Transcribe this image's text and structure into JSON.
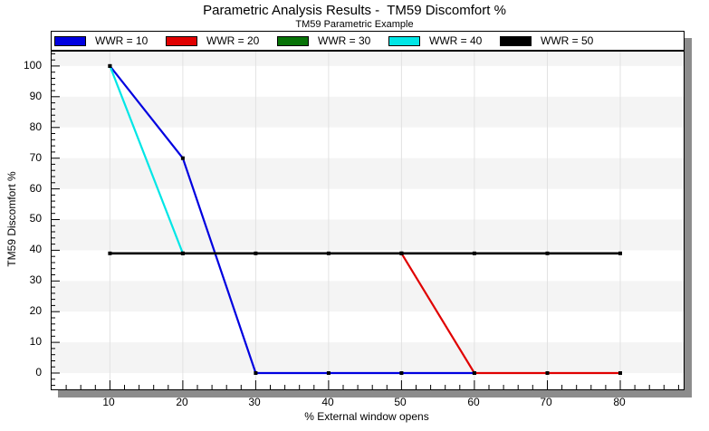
{
  "chart_data": {
    "type": "line",
    "title": "Parametric Analysis Results -  TM59 Discomfort %",
    "subtitle": "TM59 Parametric Example",
    "xlabel": "% External window opens",
    "ylabel": "TM59 Discomfort %",
    "xlim": [
      2,
      88.7
    ],
    "ylim": [
      -5.3,
      104.7
    ],
    "x_major_ticks": [
      10,
      20,
      30,
      40,
      50,
      60,
      70,
      80
    ],
    "y_major_ticks": [
      0,
      10,
      20,
      30,
      40,
      50,
      60,
      70,
      80,
      90,
      100
    ],
    "minor_tick_step": 2,
    "legend_position": "top",
    "marker": "black-square",
    "grid": {
      "vertical_gridlines": true,
      "horizontal_bands": true,
      "band_color": "#F4F4F4",
      "gridline_color": "#E2E2E2"
    },
    "series": [
      {
        "name": "WWR = 10",
        "color": "#0000E0",
        "points": [
          [
            10,
            100
          ],
          [
            20,
            70
          ],
          [
            30,
            0
          ],
          [
            40,
            0
          ],
          [
            50,
            0
          ],
          [
            60,
            0
          ]
        ]
      },
      {
        "name": "WWR = 20",
        "color": "#E00000",
        "points": [
          [
            50,
            39
          ],
          [
            60,
            0
          ],
          [
            70,
            0
          ],
          [
            80,
            0
          ]
        ],
        "note": "visible from x=50 onward; to the left it coincides with / is hidden behind the WWR = 50 line"
      },
      {
        "name": "WWR = 30",
        "color": "#077207",
        "points": [],
        "note": "line not visible in plot area (hidden behind the WWR = 50 line)"
      },
      {
        "name": "WWR = 40",
        "color": "#00E6E6",
        "points": [
          [
            10,
            100
          ],
          [
            20,
            39
          ]
        ],
        "note": "visible down to x=20 where it meets the WWR = 50 line"
      },
      {
        "name": "WWR = 50",
        "color": "#000000",
        "points": [
          [
            10,
            39
          ],
          [
            20,
            39
          ],
          [
            30,
            39
          ],
          [
            40,
            39
          ],
          [
            50,
            39
          ],
          [
            60,
            39
          ],
          [
            70,
            39
          ],
          [
            80,
            39
          ]
        ]
      }
    ]
  },
  "frame": {
    "border_color": "#000000",
    "shadow_color": "#8C8C8C",
    "background": "#FFFFFF"
  }
}
